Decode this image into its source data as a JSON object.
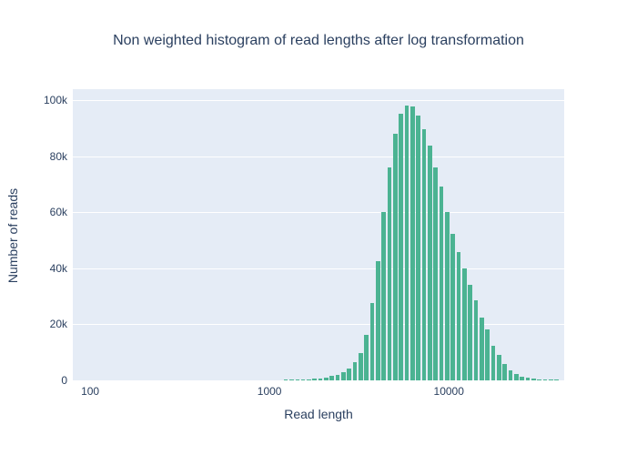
{
  "title": "Non weighted histogram of read lengths after log transformation",
  "colors": {
    "bar": "#4bb392",
    "plot_background": "#e5ecf6",
    "gridline": "#ffffff",
    "text": "#2a3f5f",
    "page_background": "#ffffff"
  },
  "chart_data": {
    "type": "bar",
    "subtype": "histogram",
    "title": "Non weighted histogram of read lengths after log transformation",
    "xlabel": "Read length",
    "ylabel": "Number of reads",
    "x_scale": "log",
    "grid": true,
    "legend_position": "none",
    "x_range": [
      80,
      44000
    ],
    "ylim": [
      0,
      104000
    ],
    "x_ticks": [
      {
        "value": 100,
        "label": "100"
      },
      {
        "value": 1000,
        "label": "1000"
      },
      {
        "value": 10000,
        "label": "10000"
      }
    ],
    "y_ticks": [
      {
        "value": 0,
        "label": "0"
      },
      {
        "value": 20000,
        "label": "20k"
      },
      {
        "value": 40000,
        "label": "40k"
      },
      {
        "value": 60000,
        "label": "60k"
      },
      {
        "value": 80000,
        "label": "80k"
      },
      {
        "value": 100000,
        "label": "100k"
      }
    ],
    "bin_log10_width": 0.03213,
    "x": [
      1234,
      1329,
      1431,
      1541,
      1659,
      1786,
      1923,
      2071,
      2230,
      2401,
      2586,
      2784,
      2998,
      3228,
      3476,
      3743,
      4031,
      4340,
      4674,
      5033,
      5419,
      5836,
      6284,
      6767,
      7286,
      7846,
      8449,
      9098,
      9797,
      10549,
      11360,
      12232,
      13172,
      14184,
      15274,
      16447,
      17711,
      19071,
      20537,
      22114,
      23813,
      25643,
      27613,
      29734,
      32018,
      34478,
      37127,
      39979
    ],
    "values": [
      100,
      150,
      200,
      300,
      400,
      550,
      800,
      1100,
      1500,
      1900,
      2800,
      4200,
      6600,
      9700,
      16400,
      27800,
      42600,
      60300,
      76200,
      88100,
      95100,
      98200,
      97800,
      94600,
      89700,
      83800,
      76200,
      69200,
      60300,
      52200,
      46000,
      40000,
      34000,
      28500,
      22400,
      18300,
      12300,
      9100,
      5800,
      3700,
      2400,
      1300,
      900,
      650,
      450,
      300,
      200,
      120
    ]
  }
}
